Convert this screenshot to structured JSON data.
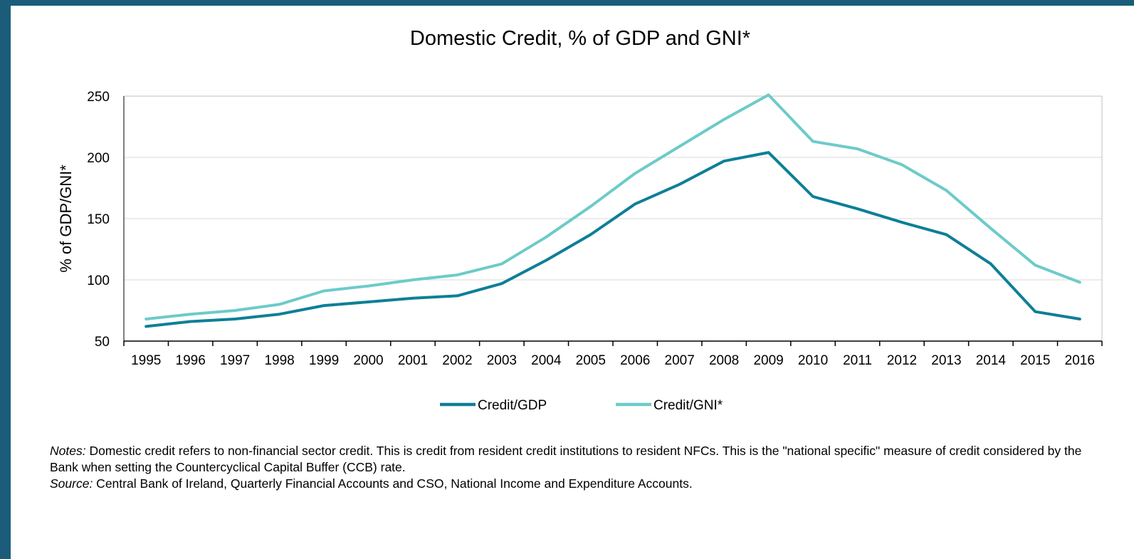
{
  "colors": {
    "frame": "#1a5c7a",
    "credit_gdp": "#0e7f97",
    "credit_gni": "#6dcbc9",
    "grid": "#d9d9d9",
    "axis": "#000000"
  },
  "chart_data": {
    "type": "line",
    "title": "Domestic Credit, % of GDP and GNI*",
    "xlabel": "",
    "ylabel": "% of GDP/GNI*",
    "ylim": [
      50,
      250
    ],
    "yticks": [
      50,
      100,
      150,
      200,
      250
    ],
    "grid": true,
    "legend_position": "bottom",
    "categories": [
      "1995",
      "1996",
      "1997",
      "1998",
      "1999",
      "2000",
      "2001",
      "2002",
      "2003",
      "2004",
      "2005",
      "2006",
      "2007",
      "2008",
      "2009",
      "2010",
      "2011",
      "2012",
      "2013",
      "2014",
      "2015",
      "2016"
    ],
    "series": [
      {
        "name": "Credit/GDP",
        "color": "#0e7f97",
        "values": [
          62,
          66,
          68,
          72,
          79,
          82,
          85,
          87,
          97,
          116,
          137,
          162,
          178,
          197,
          204,
          168,
          158,
          147,
          137,
          113,
          74,
          68
        ]
      },
      {
        "name": "Credit/GNI*",
        "color": "#6dcbc9",
        "values": [
          68,
          72,
          75,
          80,
          91,
          95,
          100,
          104,
          113,
          135,
          160,
          187,
          209,
          231,
          251,
          213,
          207,
          194,
          173,
          142,
          112,
          98
        ]
      }
    ]
  },
  "notes": {
    "notes_label": "Notes:",
    "notes_text": " Domestic credit refers to non-financial sector credit. This  is credit from resident credit institutions to resident NFCs. This is the \"national specific\" measure of credit considered by the Bank when setting the Countercyclical Capital Buffer (CCB) rate.",
    "source_label": "Source:",
    "source_text": " Central Bank of Ireland, Quarterly Financial Accounts and CSO, National Income and Expenditure Accounts."
  }
}
